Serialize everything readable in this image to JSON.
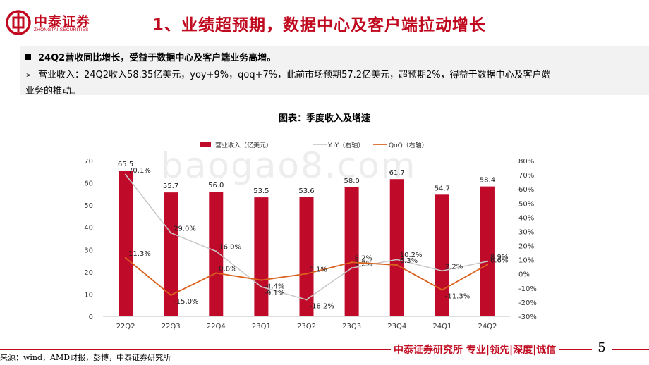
{
  "header": {
    "logo_text": "中泰证券",
    "logo_en": "ZHONGTAI SECURITIES",
    "title": "1、业绩超预期，数据中心及客户端拉动增长"
  },
  "summary": {
    "headline": "24Q2营收同比增长，受益于数据中心及客户端业务高增。",
    "detail_line1": "营业收入：24Q2收入58.35亿美元，yoy+9%，qoq+7%，此前市场预期57.2亿美元，超预期2%，得益于数据中心及客户端",
    "detail_line2": "业务的推动。"
  },
  "chart_caption": "图表：季度收入及增速",
  "watermark": "baogao8.com",
  "chart_data": {
    "type": "bar",
    "categories": [
      "22Q2",
      "22Q3",
      "22Q4",
      "23Q1",
      "23Q2",
      "23Q3",
      "23Q4",
      "24Q1",
      "24Q2"
    ],
    "series": [
      {
        "name": "营业收入（亿美元）",
        "kind": "bar",
        "axis": "left",
        "values": [
          65.5,
          55.7,
          56.0,
          53.5,
          53.6,
          58.0,
          61.7,
          54.7,
          58.4
        ],
        "labels": [
          "65.5",
          "55.7",
          "56.0",
          "53.5",
          "53.6",
          "58.0",
          "61.7",
          "54.7",
          "58.4"
        ],
        "color": "#c00a2a"
      },
      {
        "name": "YoY（右轴）",
        "kind": "line",
        "axis": "right",
        "values": [
          70.1,
          29.0,
          16.0,
          -9.1,
          -18.2,
          4.2,
          10.2,
          2.2,
          8.9
        ],
        "labels": [
          "70.1%",
          "29.0%",
          "16.0%",
          "-9.1%",
          "-18.2%",
          "4.2%",
          "10.2%",
          "2.2%",
          "8.9%"
        ],
        "color": "#c8c8c8"
      },
      {
        "name": "QoQ（右轴）",
        "kind": "line",
        "axis": "right",
        "values": [
          11.3,
          -15.0,
          0.6,
          -4.4,
          0.1,
          8.2,
          6.3,
          -11.3,
          6.6
        ],
        "labels": [
          "11.3%",
          "-15.0%",
          "0.6%",
          "-4.4%",
          "0.1%",
          "8.2%",
          "6.3%",
          "-11.3%",
          "6.6%"
        ],
        "color": "#d9621e"
      }
    ],
    "y_left": {
      "min": 0,
      "max": 70,
      "ticks": [
        "0",
        "10",
        "20",
        "30",
        "40",
        "50",
        "60",
        "70"
      ]
    },
    "y_right": {
      "min": -30,
      "max": 80,
      "ticks": [
        "-30%",
        "-20%",
        "-10%",
        "0%",
        "10%",
        "20%",
        "30%",
        "40%",
        "50%",
        "60%",
        "70%",
        "80%"
      ]
    },
    "legend_position": "top-center"
  },
  "footer": {
    "source": "来源：wind，AMD财报，彭博，中泰证券研究所",
    "brand": "中泰证券研究所 专业|领先|深度|诚信",
    "page_number": "5"
  }
}
